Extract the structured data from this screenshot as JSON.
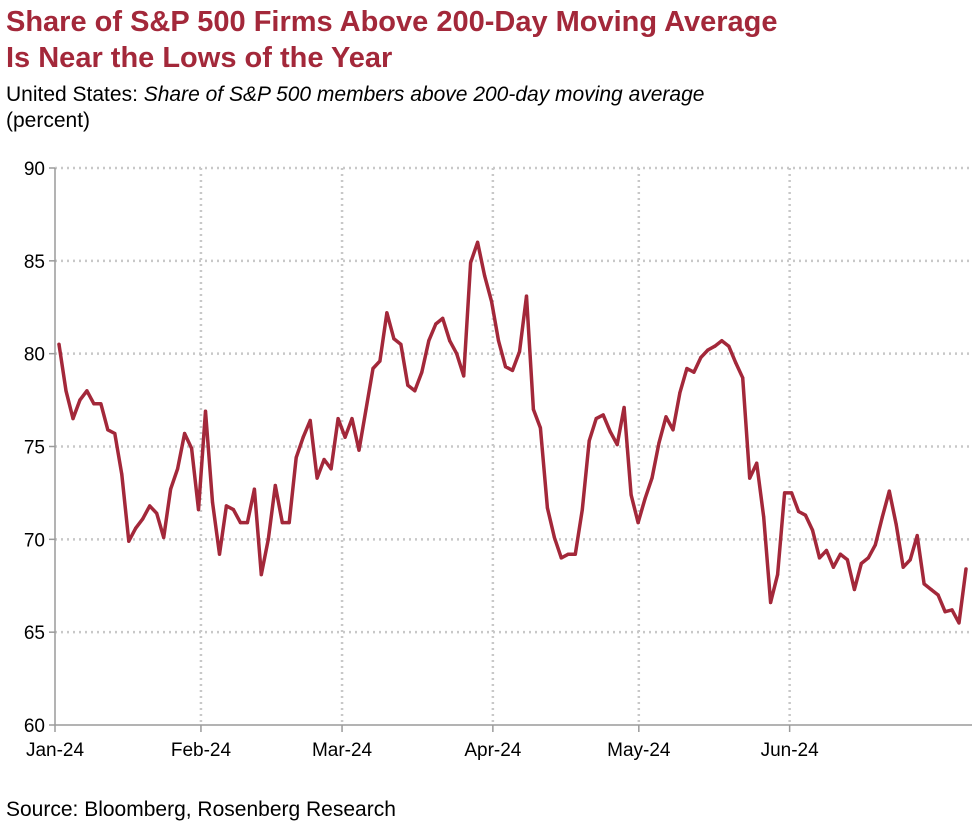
{
  "header": {
    "title_line1": "Share of S&P 500 Firms Above 200-Day Moving Average",
    "title_line2": "Is Near the Lows of the Year",
    "subtitle_prefix": "United States: ",
    "subtitle_desc": "Share of S&P 500 members above 200-day moving average",
    "unit": "(percent)"
  },
  "footer": {
    "source": "Source: Bloomberg, Rosenberg Research"
  },
  "colors": {
    "line": "#a3283a",
    "title": "#a3283a",
    "grid": "#c8c8c8",
    "axis": "#9a9a9a"
  },
  "chart_data": {
    "type": "line",
    "ylim": [
      60,
      90
    ],
    "yticks": [
      60,
      65,
      70,
      75,
      80,
      85,
      90
    ],
    "xlim": [
      "2024-01-02",
      "2024-06-28"
    ],
    "xticks": [
      {
        "date": "2024-01-02",
        "label": "Jan-24"
      },
      {
        "date": "2024-02-01",
        "label": "Feb-24"
      },
      {
        "date": "2024-03-01",
        "label": "Mar-24"
      },
      {
        "date": "2024-04-01",
        "label": "Apr-24"
      },
      {
        "date": "2024-05-01",
        "label": "May-24"
      },
      {
        "date": "2024-06-01",
        "label": "Jun-24"
      }
    ],
    "grid": true,
    "series": [
      {
        "values": [
          [
            "2024-01-02",
            80.5
          ],
          [
            "2024-01-03",
            78.0
          ],
          [
            "2024-01-04",
            76.5
          ],
          [
            "2024-01-05",
            77.5
          ],
          [
            "2024-01-08",
            78.0
          ],
          [
            "2024-01-09",
            77.3
          ],
          [
            "2024-01-10",
            77.3
          ],
          [
            "2024-01-11",
            75.9
          ],
          [
            "2024-01-12",
            75.7
          ],
          [
            "2024-01-16",
            73.5
          ],
          [
            "2024-01-17",
            69.9
          ],
          [
            "2024-01-18",
            70.6
          ],
          [
            "2024-01-19",
            71.1
          ],
          [
            "2024-01-22",
            71.8
          ],
          [
            "2024-01-23",
            71.4
          ],
          [
            "2024-01-24",
            70.1
          ],
          [
            "2024-01-25",
            72.7
          ],
          [
            "2024-01-26",
            73.8
          ],
          [
            "2024-01-29",
            75.7
          ],
          [
            "2024-01-30",
            74.9
          ],
          [
            "2024-01-31",
            71.6
          ],
          [
            "2024-02-01",
            76.9
          ],
          [
            "2024-02-02",
            72.0
          ],
          [
            "2024-02-05",
            69.2
          ],
          [
            "2024-02-06",
            71.8
          ],
          [
            "2024-02-07",
            71.6
          ],
          [
            "2024-02-08",
            70.9
          ],
          [
            "2024-02-09",
            70.9
          ],
          [
            "2024-02-12",
            72.7
          ],
          [
            "2024-02-13",
            68.1
          ],
          [
            "2024-02-14",
            70.0
          ],
          [
            "2024-02-15",
            72.9
          ],
          [
            "2024-02-16",
            70.9
          ],
          [
            "2024-02-20",
            70.9
          ],
          [
            "2024-02-21",
            74.4
          ],
          [
            "2024-02-22",
            75.5
          ],
          [
            "2024-02-23",
            76.4
          ],
          [
            "2024-02-26",
            73.3
          ],
          [
            "2024-02-27",
            74.3
          ],
          [
            "2024-02-28",
            73.8
          ],
          [
            "2024-02-29",
            76.5
          ],
          [
            "2024-03-01",
            75.5
          ],
          [
            "2024-03-04",
            76.5
          ],
          [
            "2024-03-05",
            74.8
          ],
          [
            "2024-03-06",
            77.0
          ],
          [
            "2024-03-07",
            79.2
          ],
          [
            "2024-03-08",
            79.6
          ],
          [
            "2024-03-11",
            82.2
          ],
          [
            "2024-03-12",
            80.8
          ],
          [
            "2024-03-13",
            80.5
          ],
          [
            "2024-03-14",
            78.3
          ],
          [
            "2024-03-15",
            78.0
          ],
          [
            "2024-03-18",
            79.0
          ],
          [
            "2024-03-19",
            80.7
          ],
          [
            "2024-03-20",
            81.6
          ],
          [
            "2024-03-21",
            81.9
          ],
          [
            "2024-03-22",
            80.7
          ],
          [
            "2024-03-25",
            80.0
          ],
          [
            "2024-03-26",
            78.8
          ],
          [
            "2024-03-27",
            84.9
          ],
          [
            "2024-03-28",
            86.0
          ],
          [
            "2024-04-01",
            84.2
          ],
          [
            "2024-04-02",
            82.8
          ],
          [
            "2024-04-03",
            80.7
          ],
          [
            "2024-04-04",
            79.3
          ],
          [
            "2024-04-05",
            79.1
          ],
          [
            "2024-04-08",
            80.1
          ],
          [
            "2024-04-09",
            83.1
          ],
          [
            "2024-04-10",
            77.0
          ],
          [
            "2024-04-11",
            76.0
          ],
          [
            "2024-04-12",
            71.7
          ],
          [
            "2024-04-15",
            70.1
          ],
          [
            "2024-04-16",
            69.0
          ],
          [
            "2024-04-17",
            69.2
          ],
          [
            "2024-04-18",
            69.2
          ],
          [
            "2024-04-19",
            71.6
          ],
          [
            "2024-04-22",
            75.3
          ],
          [
            "2024-04-23",
            76.5
          ],
          [
            "2024-04-24",
            76.7
          ],
          [
            "2024-04-25",
            75.8
          ],
          [
            "2024-04-26",
            75.1
          ],
          [
            "2024-04-29",
            77.1
          ],
          [
            "2024-04-30",
            72.4
          ],
          [
            "2024-05-01",
            70.9
          ],
          [
            "2024-05-02",
            72.2
          ],
          [
            "2024-05-03",
            73.3
          ],
          [
            "2024-05-06",
            75.2
          ],
          [
            "2024-05-07",
            76.6
          ],
          [
            "2024-05-08",
            75.9
          ],
          [
            "2024-05-09",
            77.9
          ],
          [
            "2024-05-10",
            79.2
          ],
          [
            "2024-05-13",
            79.0
          ],
          [
            "2024-05-14",
            79.8
          ],
          [
            "2024-05-15",
            80.2
          ],
          [
            "2024-05-16",
            80.4
          ],
          [
            "2024-05-17",
            80.7
          ],
          [
            "2024-05-20",
            80.4
          ],
          [
            "2024-05-21",
            79.5
          ],
          [
            "2024-05-22",
            78.7
          ],
          [
            "2024-05-23",
            73.3
          ],
          [
            "2024-05-24",
            74.1
          ],
          [
            "2024-05-28",
            71.2
          ],
          [
            "2024-05-29",
            66.6
          ],
          [
            "2024-05-30",
            68.1
          ],
          [
            "2024-05-31",
            72.5
          ],
          [
            "2024-06-03",
            72.5
          ],
          [
            "2024-06-04",
            71.5
          ],
          [
            "2024-06-05",
            71.3
          ],
          [
            "2024-06-06",
            70.5
          ],
          [
            "2024-06-07",
            69.0
          ],
          [
            "2024-06-10",
            69.4
          ],
          [
            "2024-06-11",
            68.5
          ],
          [
            "2024-06-12",
            69.2
          ],
          [
            "2024-06-13",
            68.9
          ],
          [
            "2024-06-14",
            67.3
          ],
          [
            "2024-06-17",
            68.7
          ],
          [
            "2024-06-18",
            69.0
          ],
          [
            "2024-06-19",
            69.7
          ],
          [
            "2024-06-20",
            71.2
          ],
          [
            "2024-06-21",
            72.6
          ],
          [
            "2024-06-24",
            70.8
          ],
          [
            "2024-06-25",
            68.5
          ],
          [
            "2024-06-26",
            68.9
          ],
          [
            "2024-06-27",
            70.2
          ],
          [
            "2024-06-28",
            67.6
          ],
          [
            "2024-06-29",
            67.3
          ],
          [
            "2024-07-01",
            67.0
          ],
          [
            "2024-07-02",
            66.1
          ],
          [
            "2024-07-03",
            66.2
          ],
          [
            "2024-07-04",
            65.5
          ],
          [
            "2024-07-05",
            68.4
          ]
        ]
      }
    ]
  }
}
